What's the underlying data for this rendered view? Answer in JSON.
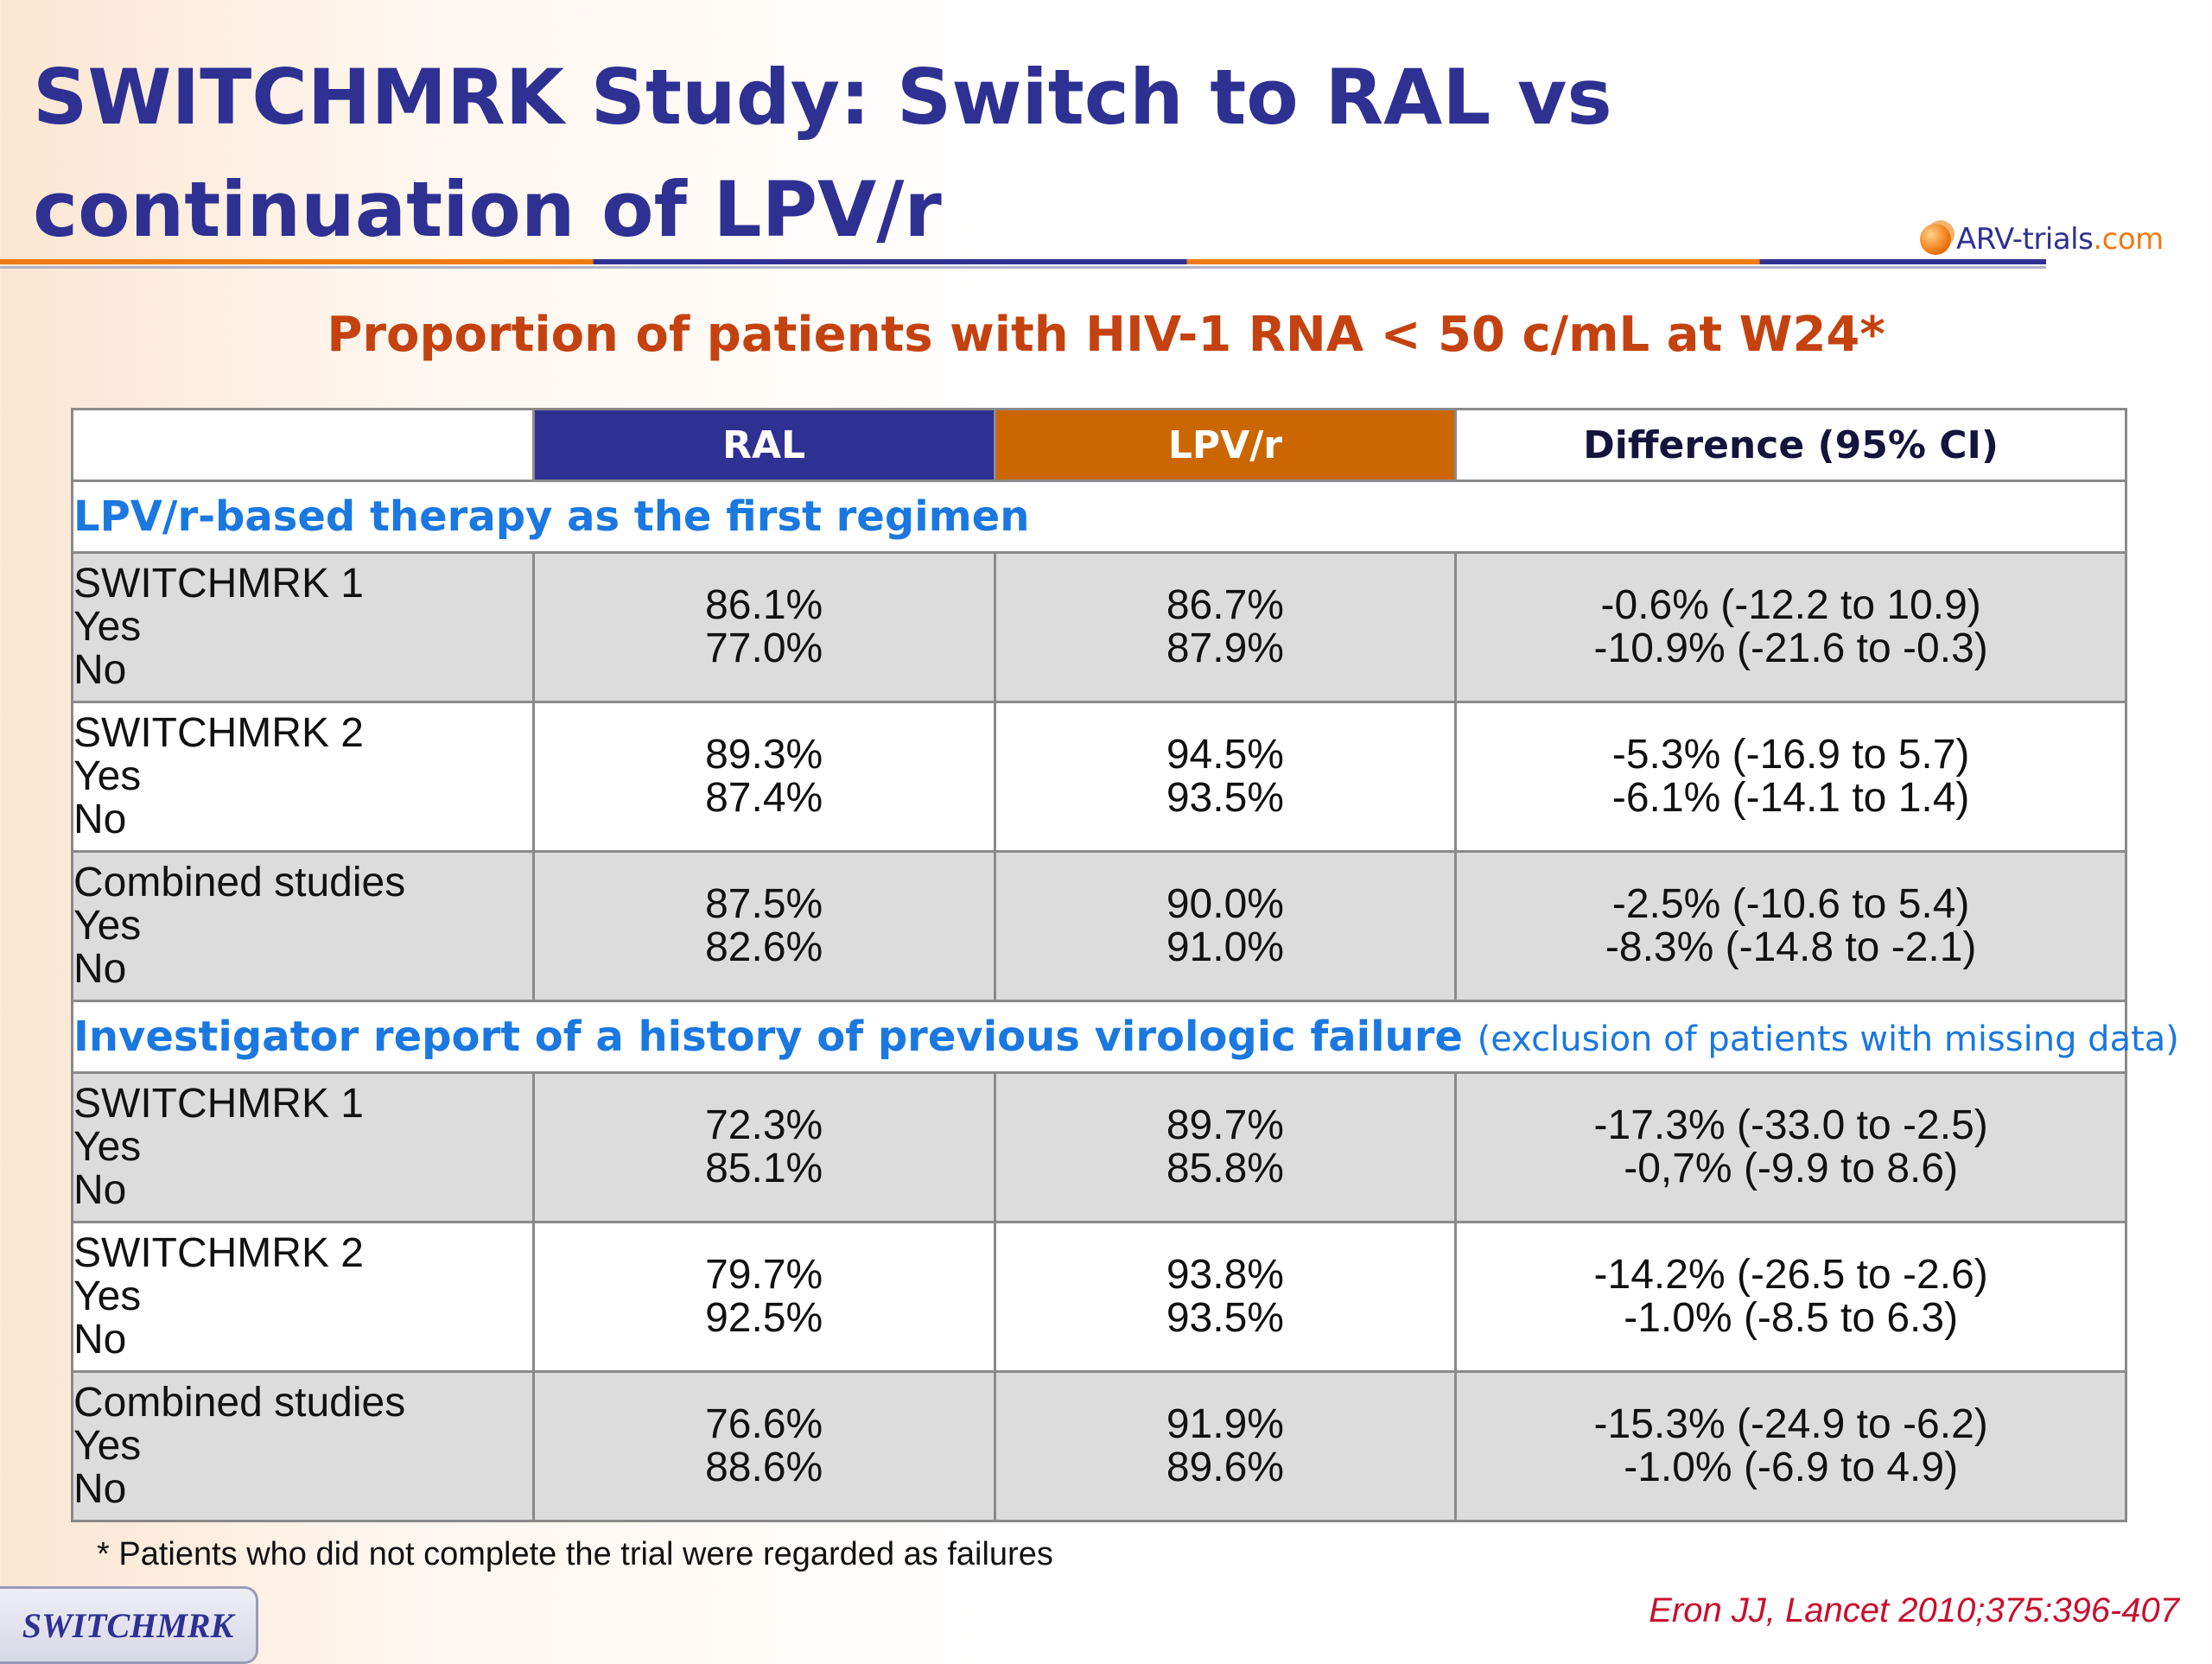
{
  "header": {
    "title": "SWITCHMRK Study: Switch to RAL vs continuation of LPV/r",
    "logo_main": "ARV-trials",
    "logo_suffix": ".com"
  },
  "subtitle": "Proportion of patients with HIV-1 RNA < 50 c/mL at W24*",
  "colors": {
    "ral": "#2e3192",
    "lpv": "#cc6600",
    "section": "#1a78e0",
    "subtitle": "#c4420f",
    "citation": "#c8102e"
  },
  "table": {
    "columns": {
      "blank": "",
      "ral": "RAL",
      "lpv": "LPV/r",
      "diff": "Difference (95% CI)"
    },
    "section1": {
      "title": "LPV/r-based therapy as the first regimen",
      "groups": [
        {
          "name": "SWITCHMRK 1",
          "yes_label": "Yes",
          "no_label": "No",
          "ral_yes": "86.1%",
          "ral_no": "77.0%",
          "lpv_yes": "86.7%",
          "lpv_no": "87.9%",
          "diff_yes": "-0.6% (-12.2 to 10.9)",
          "diff_no": "-10.9% (-21.6 to -0.3)"
        },
        {
          "name": "SWITCHMRK 2",
          "yes_label": "Yes",
          "no_label": "No",
          "ral_yes": "89.3%",
          "ral_no": "87.4%",
          "lpv_yes": "94.5%",
          "lpv_no": "93.5%",
          "diff_yes": "-5.3% (-16.9 to 5.7)",
          "diff_no": "-6.1% (-14.1 to 1.4)"
        },
        {
          "name": "Combined studies",
          "yes_label": "Yes",
          "no_label": "No",
          "ral_yes": "87.5%",
          "ral_no": "82.6%",
          "lpv_yes": "90.0%",
          "lpv_no": "91.0%",
          "diff_yes": "-2.5% (-10.6 to 5.4)",
          "diff_no": "-8.3% (-14.8 to -2.1)"
        }
      ]
    },
    "section2": {
      "title": "Investigator report of a history of previous virologic failure",
      "note": "(exclusion of patients with missing data)",
      "groups": [
        {
          "name": "SWITCHMRK 1",
          "yes_label": "Yes",
          "no_label": "No",
          "ral_yes": "72.3%",
          "ral_no": "85.1%",
          "lpv_yes": "89.7%",
          "lpv_no": "85.8%",
          "diff_yes": "-17.3% (-33.0 to -2.5)",
          "diff_no": "-0,7% (-9.9 to 8.6)"
        },
        {
          "name": "SWITCHMRK 2",
          "yes_label": "Yes",
          "no_label": "No",
          "ral_yes": "79.7%",
          "ral_no": "92.5%",
          "lpv_yes": "93.8%",
          "lpv_no": "93.5%",
          "diff_yes": "-14.2% (-26.5 to -2.6)",
          "diff_no": "-1.0% (-8.5 to 6.3)"
        },
        {
          "name": "Combined studies",
          "yes_label": "Yes",
          "no_label": "No",
          "ral_yes": "76.6%",
          "ral_no": "88.6%",
          "lpv_yes": "91.9%",
          "lpv_no": "89.6%",
          "diff_yes": "-15.3% (-24.9 to -6.2)",
          "diff_no": "-1.0% (-6.9 to 4.9)"
        }
      ]
    }
  },
  "footnote": "* Patients who did not complete the trial were regarded as failures",
  "citation": "Eron JJ, Lancet 2010;375:396-407",
  "tab_label": "SWITCHMRK"
}
